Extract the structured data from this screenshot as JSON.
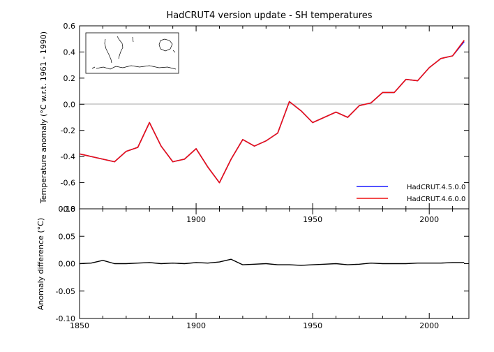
{
  "chart_data": [
    {
      "type": "line",
      "title": "HadCRUT4 version update - SH temperatures",
      "xlabel": "",
      "ylabel": "Temperature anomaly (°C w.r.t. 1961 - 1990)",
      "xlim": [
        1850,
        2017
      ],
      "ylim": [
        -0.8,
        0.6
      ],
      "yticks": [
        "-0.8",
        "-0.6",
        "-0.4",
        "-0.2",
        "0.0",
        "0.2",
        "0.4",
        "0.6"
      ],
      "xticks": [
        "1900",
        "1950",
        "2000"
      ],
      "zero_line": true,
      "legend_position": "bottom-right",
      "inset": "map-outline",
      "x": [
        1850,
        1855,
        1860,
        1865,
        1870,
        1875,
        1880,
        1885,
        1890,
        1895,
        1900,
        1905,
        1910,
        1915,
        1920,
        1925,
        1930,
        1935,
        1940,
        1945,
        1950,
        1955,
        1960,
        1965,
        1970,
        1975,
        1980,
        1985,
        1990,
        1995,
        2000,
        2005,
        2010,
        2015
      ],
      "series": [
        {
          "name": "HadCRUT.4.5.0.0",
          "color": "#1a1aff",
          "values": [
            -0.38,
            -0.4,
            -0.42,
            -0.44,
            -0.36,
            -0.33,
            -0.14,
            -0.32,
            -0.44,
            -0.42,
            -0.34,
            -0.48,
            -0.6,
            -0.42,
            -0.27,
            -0.32,
            -0.28,
            -0.22,
            0.02,
            -0.05,
            -0.14,
            -0.1,
            -0.06,
            -0.1,
            -0.01,
            0.01,
            0.09,
            0.09,
            0.19,
            0.18,
            0.28,
            0.35,
            0.37,
            0.48
          ]
        },
        {
          "name": "HadCRUT.4.6.0.0",
          "color": "#ee1111",
          "values": [
            -0.38,
            -0.4,
            -0.42,
            -0.44,
            -0.36,
            -0.33,
            -0.14,
            -0.32,
            -0.44,
            -0.42,
            -0.34,
            -0.48,
            -0.6,
            -0.42,
            -0.27,
            -0.32,
            -0.28,
            -0.22,
            0.02,
            -0.05,
            -0.14,
            -0.1,
            -0.06,
            -0.1,
            -0.01,
            0.01,
            0.09,
            0.09,
            0.19,
            0.18,
            0.28,
            0.35,
            0.37,
            0.49
          ]
        }
      ]
    },
    {
      "type": "line",
      "title": "",
      "xlabel": "",
      "ylabel": "Anomaly difference (°C)",
      "xlim": [
        1850,
        2017
      ],
      "ylim": [
        -0.1,
        0.1
      ],
      "yticks": [
        "-0.10",
        "-0.05",
        "0.00",
        "0.05",
        "0.10"
      ],
      "xticks": [
        "1850",
        "1900",
        "1950",
        "2000"
      ],
      "x": [
        1850,
        1855,
        1860,
        1865,
        1870,
        1875,
        1880,
        1885,
        1890,
        1895,
        1900,
        1905,
        1910,
        1915,
        1920,
        1925,
        1930,
        1935,
        1940,
        1945,
        1950,
        1955,
        1960,
        1965,
        1970,
        1975,
        1980,
        1985,
        1990,
        1995,
        2000,
        2005,
        2010,
        2015
      ],
      "series": [
        {
          "color": "#000000",
          "values": [
            0.0,
            0.001,
            0.006,
            0.0,
            0.0,
            0.001,
            0.002,
            0.0,
            0.001,
            0.0,
            0.002,
            0.001,
            0.003,
            0.008,
            -0.002,
            -0.001,
            0.0,
            -0.002,
            -0.002,
            -0.003,
            -0.002,
            -0.001,
            0.0,
            -0.002,
            -0.001,
            0.001,
            0.0,
            0.0,
            0.0,
            0.001,
            0.001,
            0.001,
            0.002,
            0.002
          ]
        }
      ]
    }
  ]
}
